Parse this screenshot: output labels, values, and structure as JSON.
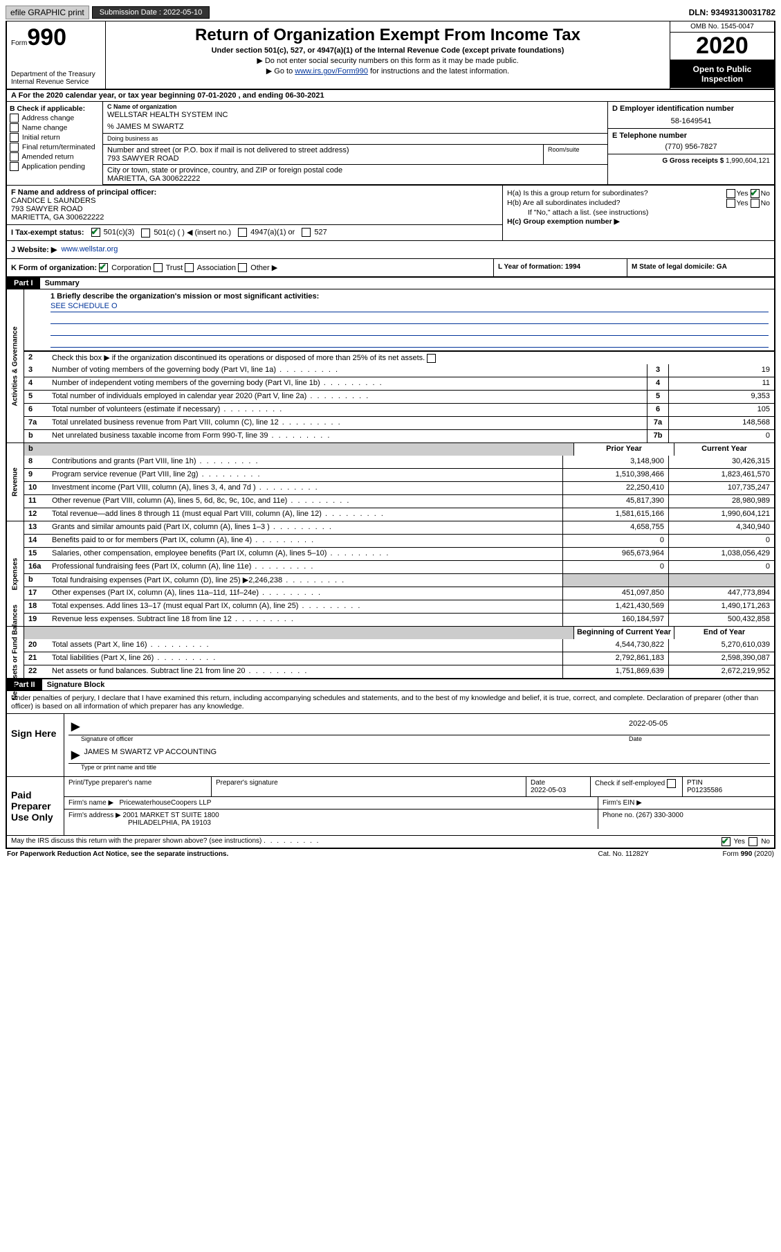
{
  "topbar": {
    "efile": "efile GRAPHIC print",
    "submission_label": "Submission Date : 2022-05-10",
    "dln_label": "DLN: 93493130031782"
  },
  "header": {
    "form_word": "Form",
    "form_num": "990",
    "dept": "Department of the Treasury\nInternal Revenue Service",
    "title": "Return of Organization Exempt From Income Tax",
    "sub": "Under section 501(c), 527, or 4947(a)(1) of the Internal Revenue Code (except private foundations)",
    "line1": "▶ Do not enter social security numbers on this form as it may be made public.",
    "line2_pre": "▶ Go to ",
    "line2_link": "www.irs.gov/Form990",
    "line2_post": " for instructions and the latest information.",
    "omb": "OMB No. 1545-0047",
    "year": "2020",
    "open_public": "Open to Public Inspection"
  },
  "sectionA": "A For the 2020 calendar year, or tax year beginning 07-01-2020     , and ending 06-30-2021",
  "boxB": {
    "label": "B Check if applicable:",
    "opts": [
      "Address change",
      "Name change",
      "Initial return",
      "Final return/terminated",
      "Amended return",
      "Application pending"
    ]
  },
  "boxC": {
    "name_label": "C Name of organization",
    "name": "WELLSTAR HEALTH SYSTEM INC",
    "care_of": "% JAMES M SWARTZ",
    "dba_label": "Doing business as",
    "street_label": "Number and street (or P.O. box if mail is not delivered to street address)",
    "street": "793 SAWYER ROAD",
    "suite_label": "Room/suite",
    "city_label": "City or town, state or province, country, and ZIP or foreign postal code",
    "city": "MARIETTA, GA  300622222"
  },
  "boxD": {
    "label": "D Employer identification number",
    "value": "58-1649541"
  },
  "boxE": {
    "label": "E Telephone number",
    "value": "(770) 956-7827"
  },
  "boxG": {
    "label": "G Gross receipts $",
    "value": "1,990,604,121"
  },
  "boxF": {
    "label": "F Name and address of principal officer:",
    "name": "CANDICE L SAUNDERS",
    "street": "793 SAWYER ROAD",
    "city": "MARIETTA, GA  300622222"
  },
  "boxH": {
    "ha": "H(a)  Is this a group return for subordinates?",
    "hb": "H(b)  Are all subordinates included?",
    "hnote": "If \"No,\" attach a list. (see instructions)",
    "hc": "H(c)  Group exemption number ▶",
    "yes": "Yes",
    "no": "No"
  },
  "rowI": {
    "label": "I  Tax-exempt status:",
    "c3": "501(c)(3)",
    "c": "501(c) (  ) ◀ (insert no.)",
    "a1": "4947(a)(1) or",
    "s527": "527"
  },
  "rowJ": {
    "label": "J  Website: ▶",
    "value": "www.wellstar.org"
  },
  "rowK": {
    "label": "K Form of organization:",
    "corp": "Corporation",
    "trust": "Trust",
    "assoc": "Association",
    "other": "Other ▶",
    "l": "L Year of formation: 1994",
    "m": "M State of legal domicile: GA"
  },
  "part1": {
    "header": "Part I",
    "title": "Summary",
    "mission_label": "1  Briefly describe the organization's mission or most significant activities:",
    "mission": "SEE SCHEDULE O",
    "line2": "Check this box ▶            if the organization discontinued its operations or disposed of more than 25% of its net assets.",
    "sideA": "Activities & Governance",
    "sideR": "Revenue",
    "sideE": "Expenses",
    "sideN": "Net Assets or Fund Balances",
    "prior": "Prior Year",
    "current": "Current Year",
    "boy": "Beginning of Current Year",
    "eoy": "End of Year",
    "lines_gov": [
      {
        "n": "3",
        "d": "Number of voting members of the governing body (Part VI, line 1a)",
        "box": "3",
        "v": "19"
      },
      {
        "n": "4",
        "d": "Number of independent voting members of the governing body (Part VI, line 1b)",
        "box": "4",
        "v": "11"
      },
      {
        "n": "5",
        "d": "Total number of individuals employed in calendar year 2020 (Part V, line 2a)",
        "box": "5",
        "v": "9,353"
      },
      {
        "n": "6",
        "d": "Total number of volunteers (estimate if necessary)",
        "box": "6",
        "v": "105"
      },
      {
        "n": "7a",
        "d": "Total unrelated business revenue from Part VIII, column (C), line 12",
        "box": "7a",
        "v": "148,568"
      },
      {
        "n": "  b",
        "d": "Net unrelated business taxable income from Form 990-T, line 39",
        "box": "7b",
        "v": "0"
      }
    ],
    "lines_rev": [
      {
        "n": "8",
        "d": "Contributions and grants (Part VIII, line 1h)",
        "p": "3,148,900",
        "c": "30,426,315"
      },
      {
        "n": "9",
        "d": "Program service revenue (Part VIII, line 2g)",
        "p": "1,510,398,466",
        "c": "1,823,461,570"
      },
      {
        "n": "10",
        "d": "Investment income (Part VIII, column (A), lines 3, 4, and 7d )",
        "p": "22,250,410",
        "c": "107,735,247"
      },
      {
        "n": "11",
        "d": "Other revenue (Part VIII, column (A), lines 5, 6d, 8c, 9c, 10c, and 11e)",
        "p": "45,817,390",
        "c": "28,980,989"
      },
      {
        "n": "12",
        "d": "Total revenue—add lines 8 through 11 (must equal Part VIII, column (A), line 12)",
        "p": "1,581,615,166",
        "c": "1,990,604,121"
      }
    ],
    "lines_exp": [
      {
        "n": "13",
        "d": "Grants and similar amounts paid (Part IX, column (A), lines 1–3 )",
        "p": "4,658,755",
        "c": "4,340,940"
      },
      {
        "n": "14",
        "d": "Benefits paid to or for members (Part IX, column (A), line 4)",
        "p": "0",
        "c": "0"
      },
      {
        "n": "15",
        "d": "Salaries, other compensation, employee benefits (Part IX, column (A), lines 5–10)",
        "p": "965,673,964",
        "c": "1,038,056,429"
      },
      {
        "n": "16a",
        "d": "Professional fundraising fees (Part IX, column (A), line 11e)",
        "p": "0",
        "c": "0"
      },
      {
        "n": "  b",
        "d": "Total fundraising expenses (Part IX, column (D), line 25) ▶2,246,238",
        "p": "",
        "c": "",
        "shaded": true
      },
      {
        "n": "17",
        "d": "Other expenses (Part IX, column (A), lines 11a–11d, 11f–24e)",
        "p": "451,097,850",
        "c": "447,773,894"
      },
      {
        "n": "18",
        "d": "Total expenses. Add lines 13–17 (must equal Part IX, column (A), line 25)",
        "p": "1,421,430,569",
        "c": "1,490,171,263"
      },
      {
        "n": "19",
        "d": "Revenue less expenses. Subtract line 18 from line 12",
        "p": "160,184,597",
        "c": "500,432,858"
      }
    ],
    "lines_net": [
      {
        "n": "20",
        "d": "Total assets (Part X, line 16)",
        "p": "4,544,730,822",
        "c": "5,270,610,039"
      },
      {
        "n": "21",
        "d": "Total liabilities (Part X, line 26)",
        "p": "2,792,861,183",
        "c": "2,598,390,087"
      },
      {
        "n": "22",
        "d": "Net assets or fund balances. Subtract line 21 from line 20",
        "p": "1,751,869,639",
        "c": "2,672,219,952"
      }
    ]
  },
  "part2": {
    "header": "Part II",
    "title": "Signature Block",
    "decl": "Under penalties of perjury, I declare that I have examined this return, including accompanying schedules and statements, and to the best of my knowledge and belief, it is true, correct, and complete. Declaration of preparer (other than officer) is based on all information of which preparer has any knowledge.",
    "sign_here": "Sign Here",
    "sig_officer": "Signature of officer",
    "sig_date_label": "Date",
    "sig_date": "2022-05-05",
    "officer_name": "JAMES M SWARTZ  VP ACCOUNTING",
    "type_name": "Type or print name and title",
    "paid": "Paid Preparer Use Only",
    "prep_name_label": "Print/Type preparer's name",
    "prep_sig_label": "Preparer's signature",
    "prep_date_label": "Date",
    "prep_date": "2022-05-03",
    "check_self": "Check          if self-employed",
    "ptin_label": "PTIN",
    "ptin": "P01235586",
    "firm_name_label": "Firm's name    ▶",
    "firm_name": "PricewaterhouseCoopers LLP",
    "firm_ein_label": "Firm's EIN ▶",
    "firm_addr_label": "Firm's address ▶",
    "firm_addr1": "2001 MARKET ST SUITE 1800",
    "firm_addr2": "PHILADELPHIA, PA  19103",
    "phone_label": "Phone no.",
    "phone": "(267) 330-3000",
    "discuss": "May the IRS discuss this return with the preparer shown above? (see instructions)",
    "yes": "Yes",
    "no": "No"
  },
  "footer": {
    "left": "For Paperwork Reduction Act Notice, see the separate instructions.",
    "cat": "Cat. No. 11282Y",
    "form": "Form 990 (2020)"
  }
}
